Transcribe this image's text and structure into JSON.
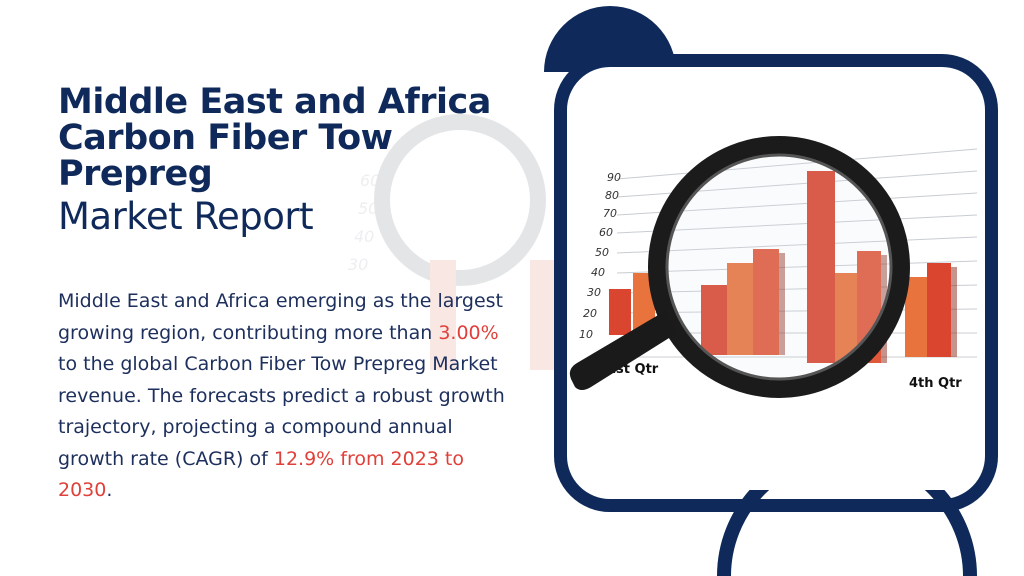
{
  "title": {
    "line1": "Middle East and Africa",
    "line2": "Carbon Fiber Tow",
    "line3": "Prepreg",
    "subtitle": "Market Report"
  },
  "description": {
    "part1": "Middle East and Africa emerging as the largest growing region, contributing more than ",
    "highlight1": "3.00%",
    "part2": " to the global Carbon Fiber Tow Prepreg Market revenue. The forecasts predict a robust growth trajectory, projecting a compound annual growth rate (CAGR) of ",
    "highlight2": "12.9% from 2023 to 2030",
    "part3": "."
  },
  "image": {
    "y_tick_labels": [
      "90",
      "80",
      "70",
      "60",
      "50",
      "40",
      "30",
      "20",
      "10"
    ],
    "qtr_labels": [
      "1st Qtr",
      "4th Qtr"
    ],
    "icon": "magnifying-glass-icon"
  },
  "colors": {
    "navy": "#0f2a5a",
    "accent_red": "#e0403a",
    "bar_red": "#d9452f",
    "bar_orange": "#e8733d"
  }
}
